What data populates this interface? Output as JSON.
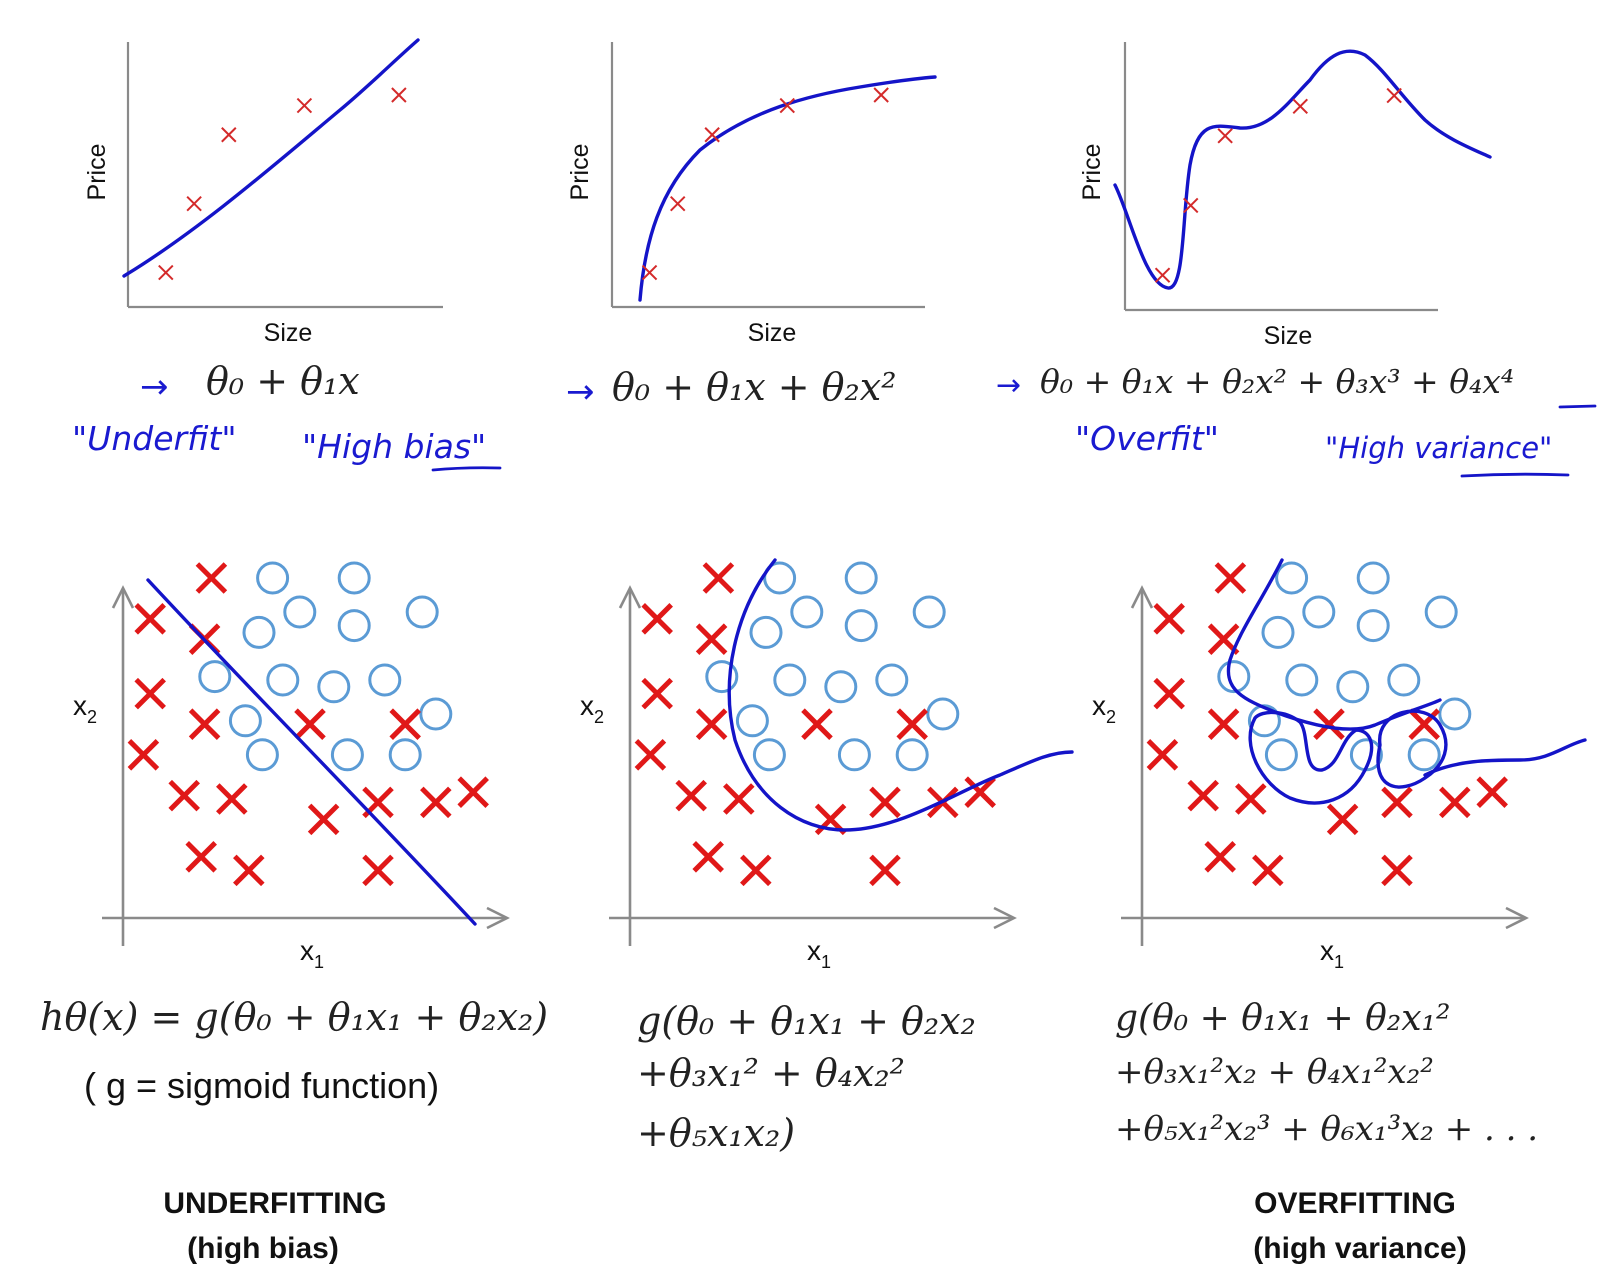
{
  "chart_data": [
    {
      "type": "scatter",
      "panel": "regression-underfit",
      "xlabel": "Size",
      "ylabel": "Price",
      "points": [
        [
          1.2,
          1.3
        ],
        [
          2.1,
          3.9
        ],
        [
          3.2,
          6.5
        ],
        [
          5.6,
          7.6
        ],
        [
          8.6,
          8.0
        ]
      ],
      "fit": "linear",
      "formula": "θ₀ + θ₁x",
      "annotations": [
        "\"Underfit\"",
        "\"High bias\""
      ]
    },
    {
      "type": "scatter",
      "panel": "regression-justright",
      "xlabel": "Size",
      "ylabel": "Price",
      "points": [
        [
          1.2,
          1.3
        ],
        [
          2.1,
          3.9
        ],
        [
          3.2,
          6.5
        ],
        [
          5.6,
          7.6
        ],
        [
          8.6,
          8.0
        ]
      ],
      "fit": "quadratic",
      "formula": "θ₀ + θ₁x + θ₂x²"
    },
    {
      "type": "scatter",
      "panel": "regression-overfit",
      "xlabel": "Size",
      "ylabel": "Price",
      "points": [
        [
          1.2,
          1.3
        ],
        [
          2.1,
          3.9
        ],
        [
          3.2,
          6.5
        ],
        [
          5.6,
          7.6
        ],
        [
          8.6,
          8.0
        ]
      ],
      "fit": "quartic",
      "formula": "θ₀ + θ₁x + θ₂x² + θ₃x³ + θ₄x⁴",
      "annotations": [
        "\"Overfit\"",
        "\"High variance\""
      ]
    },
    {
      "type": "scatter",
      "panel": "classification-underfit",
      "xlabel": "x",
      "xlabel_sub": "1",
      "ylabel": "x",
      "ylabel_sub": "2",
      "formula_lines": [
        "hθ(x) = g(θ₀ + θ₁x₁ + θ₂x₂)"
      ],
      "note": "( g = sigmoid function)",
      "crosses": [
        [
          0.8,
          8.8
        ],
        [
          2.6,
          10.0
        ],
        [
          2.4,
          8.2
        ],
        [
          0.8,
          6.6
        ],
        [
          2.4,
          5.7
        ],
        [
          0.6,
          4.8
        ],
        [
          1.8,
          3.6
        ],
        [
          3.2,
          3.5
        ],
        [
          5.5,
          5.7
        ],
        [
          8.3,
          5.7
        ],
        [
          5.9,
          2.9
        ],
        [
          7.5,
          3.4
        ],
        [
          9.2,
          3.4
        ],
        [
          10.3,
          3.7
        ],
        [
          2.3,
          1.8
        ],
        [
          3.7,
          1.4
        ],
        [
          7.5,
          1.4
        ]
      ],
      "circles": [
        [
          4.4,
          10.0
        ],
        [
          6.8,
          10.0
        ],
        [
          5.2,
          9.0
        ],
        [
          6.8,
          8.6
        ],
        [
          8.8,
          9.0
        ],
        [
          4.0,
          8.4
        ],
        [
          2.7,
          7.1
        ],
        [
          4.7,
          7.0
        ],
        [
          6.2,
          6.8
        ],
        [
          7.7,
          7.0
        ],
        [
          3.6,
          5.8
        ],
        [
          9.2,
          6.0
        ],
        [
          4.1,
          4.8
        ],
        [
          6.6,
          4.8
        ],
        [
          8.3,
          4.8
        ]
      ],
      "caption": [
        "UNDERFITTING",
        "(high bias)"
      ]
    },
    {
      "type": "scatter",
      "panel": "classification-justright",
      "xlabel": "x",
      "xlabel_sub": "1",
      "ylabel": "x",
      "ylabel_sub": "2",
      "formula_lines": [
        "g(θ₀ + θ₁x₁ + θ₂x₂",
        "+θ₃x₁² + θ₄x₂²",
        "+θ₅x₁x₂)"
      ],
      "crosses": [
        [
          0.8,
          8.8
        ],
        [
          2.6,
          10.0
        ],
        [
          2.4,
          8.2
        ],
        [
          0.8,
          6.6
        ],
        [
          2.4,
          5.7
        ],
        [
          0.6,
          4.8
        ],
        [
          1.8,
          3.6
        ],
        [
          3.2,
          3.5
        ],
        [
          5.5,
          5.7
        ],
        [
          8.3,
          5.7
        ],
        [
          5.9,
          2.9
        ],
        [
          7.5,
          3.4
        ],
        [
          9.2,
          3.4
        ],
        [
          10.3,
          3.7
        ],
        [
          2.3,
          1.8
        ],
        [
          3.7,
          1.4
        ],
        [
          7.5,
          1.4
        ]
      ],
      "circles": [
        [
          4.4,
          10.0
        ],
        [
          6.8,
          10.0
        ],
        [
          5.2,
          9.0
        ],
        [
          6.8,
          8.6
        ],
        [
          8.8,
          9.0
        ],
        [
          4.0,
          8.4
        ],
        [
          2.7,
          7.1
        ],
        [
          4.7,
          7.0
        ],
        [
          6.2,
          6.8
        ],
        [
          7.7,
          7.0
        ],
        [
          3.6,
          5.8
        ],
        [
          9.2,
          6.0
        ],
        [
          4.1,
          4.8
        ],
        [
          6.6,
          4.8
        ],
        [
          8.3,
          4.8
        ]
      ]
    },
    {
      "type": "scatter",
      "panel": "classification-overfit",
      "xlabel": "x",
      "xlabel_sub": "1",
      "ylabel": "x",
      "ylabel_sub": "2",
      "formula_lines": [
        "g(θ₀ + θ₁x₁ + θ₂x₁²",
        "+θ₃x₁²x₂ + θ₄x₁²x₂²",
        "+θ₅x₁²x₂³ + θ₆x₁³x₂ + . . ."
      ],
      "crosses": [
        [
          0.8,
          8.8
        ],
        [
          2.6,
          10.0
        ],
        [
          2.4,
          8.2
        ],
        [
          0.8,
          6.6
        ],
        [
          2.4,
          5.7
        ],
        [
          0.6,
          4.8
        ],
        [
          1.8,
          3.6
        ],
        [
          3.2,
          3.5
        ],
        [
          5.5,
          5.7
        ],
        [
          8.3,
          5.7
        ],
        [
          5.9,
          2.9
        ],
        [
          7.5,
          3.4
        ],
        [
          9.2,
          3.4
        ],
        [
          10.3,
          3.7
        ],
        [
          2.3,
          1.8
        ],
        [
          3.7,
          1.4
        ],
        [
          7.5,
          1.4
        ]
      ],
      "circles": [
        [
          4.4,
          10.0
        ],
        [
          6.8,
          10.0
        ],
        [
          5.2,
          9.0
        ],
        [
          6.8,
          8.6
        ],
        [
          8.8,
          9.0
        ],
        [
          4.0,
          8.4
        ],
        [
          2.7,
          7.1
        ],
        [
          4.7,
          7.0
        ],
        [
          6.2,
          6.8
        ],
        [
          7.7,
          7.0
        ],
        [
          3.6,
          5.8
        ],
        [
          9.2,
          6.0
        ],
        [
          4.1,
          4.8
        ],
        [
          6.6,
          4.8
        ],
        [
          8.3,
          4.8
        ]
      ],
      "caption": [
        "OVERFITTING",
        "(high variance)"
      ]
    }
  ]
}
